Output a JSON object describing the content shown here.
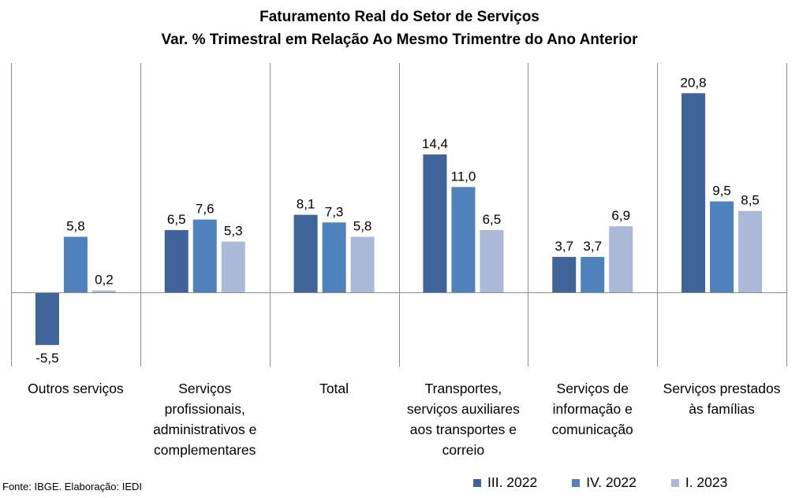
{
  "colors": {
    "series": [
      "#3E6499",
      "#4F81BD",
      "#A9B9D7"
    ],
    "axis": "#8c8c8c",
    "divider": "#8c8c8c"
  },
  "source": "Fonte: IBGE. Elaboração: IEDI",
  "chart_data": {
    "type": "bar",
    "title": "Faturamento Real do Setor de Serviços",
    "subtitle": "Var. % Trimestral em Relação Ao Mesmo Trimentre do Ano Anterior",
    "categories": [
      "Outros serviços",
      "Serviços\nprofissionais,\nadministrativos e\ncomplementares",
      "Total",
      "Transportes,\nserviços auxiliares\naos transportes e\ncorreio",
      "Serviços de\ninformação e\ncomunicação",
      "Serviços prestados\nàs famílias"
    ],
    "series": [
      {
        "name": "III. 2022",
        "values": [
          -5.5,
          6.5,
          8.1,
          14.4,
          3.7,
          20.8
        ],
        "labels": [
          "-5,5",
          "6,5",
          "8,1",
          "14,4",
          "3,7",
          "20,8"
        ]
      },
      {
        "name": "IV. 2022",
        "values": [
          5.8,
          7.6,
          7.3,
          11.0,
          3.7,
          9.5
        ],
        "labels": [
          "5,8",
          "7,6",
          "7,3",
          "11,0",
          "3,7",
          "9,5"
        ]
      },
      {
        "name": "I. 2023",
        "values": [
          0.2,
          5.3,
          5.8,
          6.5,
          6.9,
          8.5
        ],
        "labels": [
          "0,2",
          "5,3",
          "5,8",
          "6,5",
          "6,9",
          "8,5"
        ]
      }
    ],
    "ylim": [
      -8,
      24
    ],
    "grid": false,
    "legend": "bottom-right"
  }
}
